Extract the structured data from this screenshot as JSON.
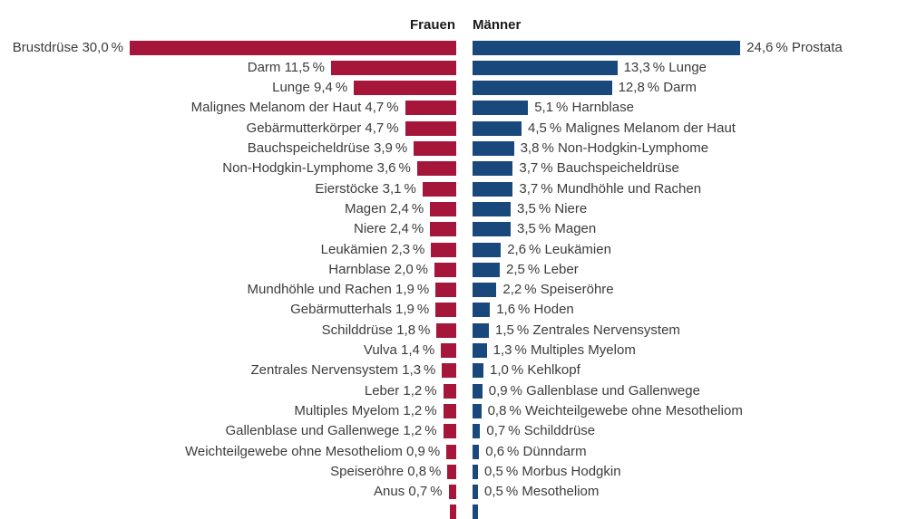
{
  "header": {
    "frauen_label": "Frauen",
    "maenner_label": "Männer"
  },
  "colors": {
    "frauen_bar": "#a5163a",
    "maenner_bar": "#19497c",
    "label_text": "#3c3c3c",
    "header_text": "#1a1a1a",
    "background": "#ffffff"
  },
  "chart_data": {
    "type": "bar",
    "orientation": "horizontal",
    "layout": "bilateral back-to-back (population-pyramid style), bars grow outward from center",
    "unit": "%",
    "decimal_separator": ",",
    "legend": [
      "Frauen",
      "Männer"
    ],
    "legend_position": "top, aligned to center gap",
    "axes": "none; value labels printed next to each bar",
    "grid": false,
    "series": [
      {
        "name": "Frauen",
        "side": "left",
        "color": "#a5163a",
        "items": [
          {
            "label": "Brustdrüse",
            "value": 30.0,
            "display": "Brustdrüse 30,0 %"
          },
          {
            "label": "Darm",
            "value": 11.5,
            "display": "Darm 11,5 %"
          },
          {
            "label": "Lunge",
            "value": 9.4,
            "display": "Lunge 9,4 %"
          },
          {
            "label": "Malignes Melanom der Haut",
            "value": 4.7,
            "display": "Malignes Melanom der Haut 4,7 %"
          },
          {
            "label": "Gebärmutterkörper",
            "value": 4.7,
            "display": "Gebärmutterkörper 4,7 %"
          },
          {
            "label": "Bauchspeicheldrüse",
            "value": 3.9,
            "display": "Bauchspeicheldrüse 3,9 %"
          },
          {
            "label": "Non-Hodgkin-Lymphome",
            "value": 3.6,
            "display": "Non-Hodgkin-Lymphome 3,6 %"
          },
          {
            "label": "Eierstöcke",
            "value": 3.1,
            "display": "Eierstöcke 3,1 %"
          },
          {
            "label": "Magen",
            "value": 2.4,
            "display": "Magen 2,4 %"
          },
          {
            "label": "Niere",
            "value": 2.4,
            "display": "Niere 2,4 %"
          },
          {
            "label": "Leukämien",
            "value": 2.3,
            "display": "Leukämien 2,3 %"
          },
          {
            "label": "Harnblase",
            "value": 2.0,
            "display": "Harnblase 2,0 %"
          },
          {
            "label": "Mundhöhle und Rachen",
            "value": 1.9,
            "display": "Mundhöhle und Rachen 1,9 %"
          },
          {
            "label": "Gebärmutterhals",
            "value": 1.9,
            "display": "Gebärmutterhals 1,9 %"
          },
          {
            "label": "Schilddrüse",
            "value": 1.8,
            "display": "Schilddrüse 1,8 %"
          },
          {
            "label": "Vulva",
            "value": 1.4,
            "display": "Vulva 1,4 %"
          },
          {
            "label": "Zentrales Nervensystem",
            "value": 1.3,
            "display": "Zentrales Nervensystem 1,3 %"
          },
          {
            "label": "Leber",
            "value": 1.2,
            "display": "Leber 1,2 %"
          },
          {
            "label": "Multiples Myelom",
            "value": 1.2,
            "display": "Multiples Myelom 1,2 %"
          },
          {
            "label": "Gallenblase und Gallenwege",
            "value": 1.2,
            "display": "Gallenblase und Gallenwege 1,2 %"
          },
          {
            "label": "Weichteilgewebe ohne Mesotheliom",
            "value": 0.9,
            "display": "Weichteilgewebe ohne Mesotheliom 0,9 %"
          },
          {
            "label": "Speiseröhre",
            "value": 0.8,
            "display": "Speiseröhre 0,8 %"
          },
          {
            "label": "Anus",
            "value": 0.7,
            "display": "Anus 0,7 %"
          },
          {
            "label": "",
            "value": 0.6,
            "display": "",
            "cut_off_at_bottom": true
          }
        ]
      },
      {
        "name": "Männer",
        "side": "right",
        "color": "#19497c",
        "items": [
          {
            "label": "Prostata",
            "value": 24.6,
            "display": "24,6 % Prostata"
          },
          {
            "label": "Lunge",
            "value": 13.3,
            "display": "13,3 % Lunge"
          },
          {
            "label": "Darm",
            "value": 12.8,
            "display": "12,8 % Darm"
          },
          {
            "label": "Harnblase",
            "value": 5.1,
            "display": "5,1 % Harnblase"
          },
          {
            "label": "Malignes Melanom der Haut",
            "value": 4.5,
            "display": "4,5 % Malignes Melanom der Haut"
          },
          {
            "label": "Non-Hodgkin-Lymphome",
            "value": 3.8,
            "display": "3,8 % Non-Hodgkin-Lymphome"
          },
          {
            "label": "Bauchspeicheldrüse",
            "value": 3.7,
            "display": "3,7 % Bauchspeicheldrüse"
          },
          {
            "label": "Mundhöhle und Rachen",
            "value": 3.7,
            "display": "3,7 % Mundhöhle und Rachen"
          },
          {
            "label": "Niere",
            "value": 3.5,
            "display": "3,5 % Niere"
          },
          {
            "label": "Magen",
            "value": 3.5,
            "display": "3,5 % Magen"
          },
          {
            "label": "Leukämien",
            "value": 2.6,
            "display": "2,6 % Leukämien"
          },
          {
            "label": "Leber",
            "value": 2.5,
            "display": "2,5 % Leber"
          },
          {
            "label": "Speiseröhre",
            "value": 2.2,
            "display": "2,2 % Speiseröhre"
          },
          {
            "label": "Hoden",
            "value": 1.6,
            "display": "1,6 % Hoden"
          },
          {
            "label": "Zentrales Nervensystem",
            "value": 1.5,
            "display": "1,5 % Zentrales Nervensystem"
          },
          {
            "label": "Multiples Myelom",
            "value": 1.3,
            "display": "1,3 % Multiples Myelom"
          },
          {
            "label": "Kehlkopf",
            "value": 1.0,
            "display": "1,0 % Kehlkopf"
          },
          {
            "label": "Gallenblase und Gallenwege",
            "value": 0.9,
            "display": "0,9 % Gallenblase und Gallenwege"
          },
          {
            "label": "Weichteilgewebe ohne Mesotheliom",
            "value": 0.8,
            "display": "0,8 % Weichteilgewebe ohne Mesotheliom"
          },
          {
            "label": "Schilddrüse",
            "value": 0.7,
            "display": "0,7 % Schilddrüse"
          },
          {
            "label": "Dünndarm",
            "value": 0.6,
            "display": "0,6 % Dünndarm"
          },
          {
            "label": "Morbus Hodgkin",
            "value": 0.5,
            "display": "0,5 % Morbus Hodgkin"
          },
          {
            "label": "Mesotheliom",
            "value": 0.5,
            "display": "0,5 % Mesotheliom"
          },
          {
            "label": "",
            "value": 0.5,
            "display": "",
            "cut_off_at_bottom": true
          }
        ]
      }
    ]
  }
}
